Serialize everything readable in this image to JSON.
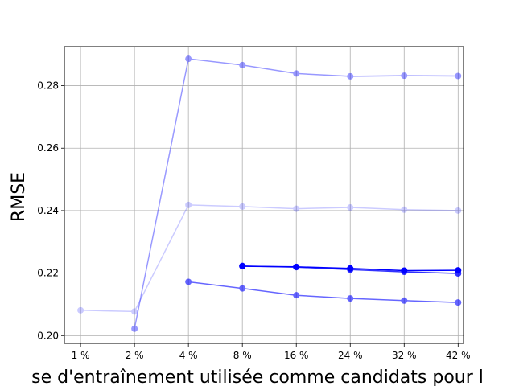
{
  "chart_data": {
    "type": "line",
    "title": "",
    "xlabel": "se d'entraînement utilisée comme candidats pour l",
    "ylabel": "RMSE",
    "categories": [
      "1 %",
      "2 %",
      "4 %",
      "8 %",
      "16 %",
      "24 %",
      "32 %",
      "42 %"
    ],
    "ylim": [
      0.1975,
      0.2925
    ],
    "yticks": [
      "0.20",
      "0.22",
      "0.24",
      "0.26",
      "0.28"
    ],
    "ytick_values": [
      0.2,
      0.22,
      0.24,
      0.26,
      0.28
    ],
    "grid": true,
    "legend": "none",
    "series": [
      {
        "color": "#0000ff",
        "opacity": 0.2,
        "values": [
          0.2081,
          0.2077,
          0.2418,
          0.2413,
          0.2406,
          0.241,
          0.2403,
          0.24
        ]
      },
      {
        "color": "#0000ff",
        "opacity": 0.4,
        "values": [
          null,
          0.2022,
          0.2886,
          0.2866,
          0.2839,
          0.283,
          0.2832,
          0.2831
        ]
      },
      {
        "color": "#0000ff",
        "opacity": 0.6,
        "values": [
          null,
          null,
          0.2172,
          0.2151,
          0.2129,
          0.2119,
          0.2112,
          0.2106
        ]
      },
      {
        "color": "#0000ff",
        "opacity": 0.8,
        "values": [
          null,
          null,
          null,
          0.2223,
          0.2219,
          0.2211,
          0.2204,
          0.2199
        ]
      },
      {
        "color": "#0000ff",
        "opacity": 1.0,
        "values": [
          null,
          null,
          null,
          0.2222,
          0.222,
          0.2215,
          0.2208,
          0.2209
        ]
      }
    ]
  }
}
